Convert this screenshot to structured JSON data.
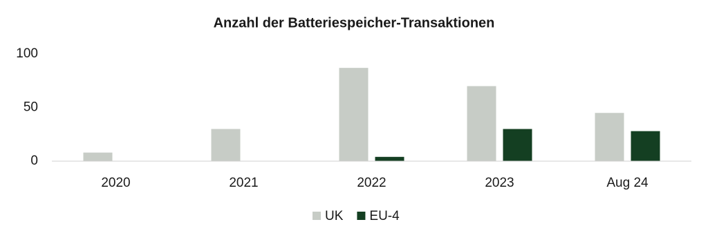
{
  "chart_data": {
    "type": "bar",
    "title": "Anzahl der Batteriespeicher-Transaktionen",
    "categories": [
      "2020",
      "2021",
      "2022",
      "2023",
      "Aug 24"
    ],
    "series": [
      {
        "name": "UK",
        "color": "#c7ccc6",
        "values": [
          8,
          30,
          87,
          70,
          45
        ]
      },
      {
        "name": "EU-4",
        "color": "#143f22",
        "values": [
          0,
          0,
          4,
          30,
          28
        ]
      }
    ],
    "ylim": [
      0,
      100
    ],
    "yticks": [
      0,
      50,
      100
    ],
    "grid": false,
    "legend": "bottom"
  }
}
